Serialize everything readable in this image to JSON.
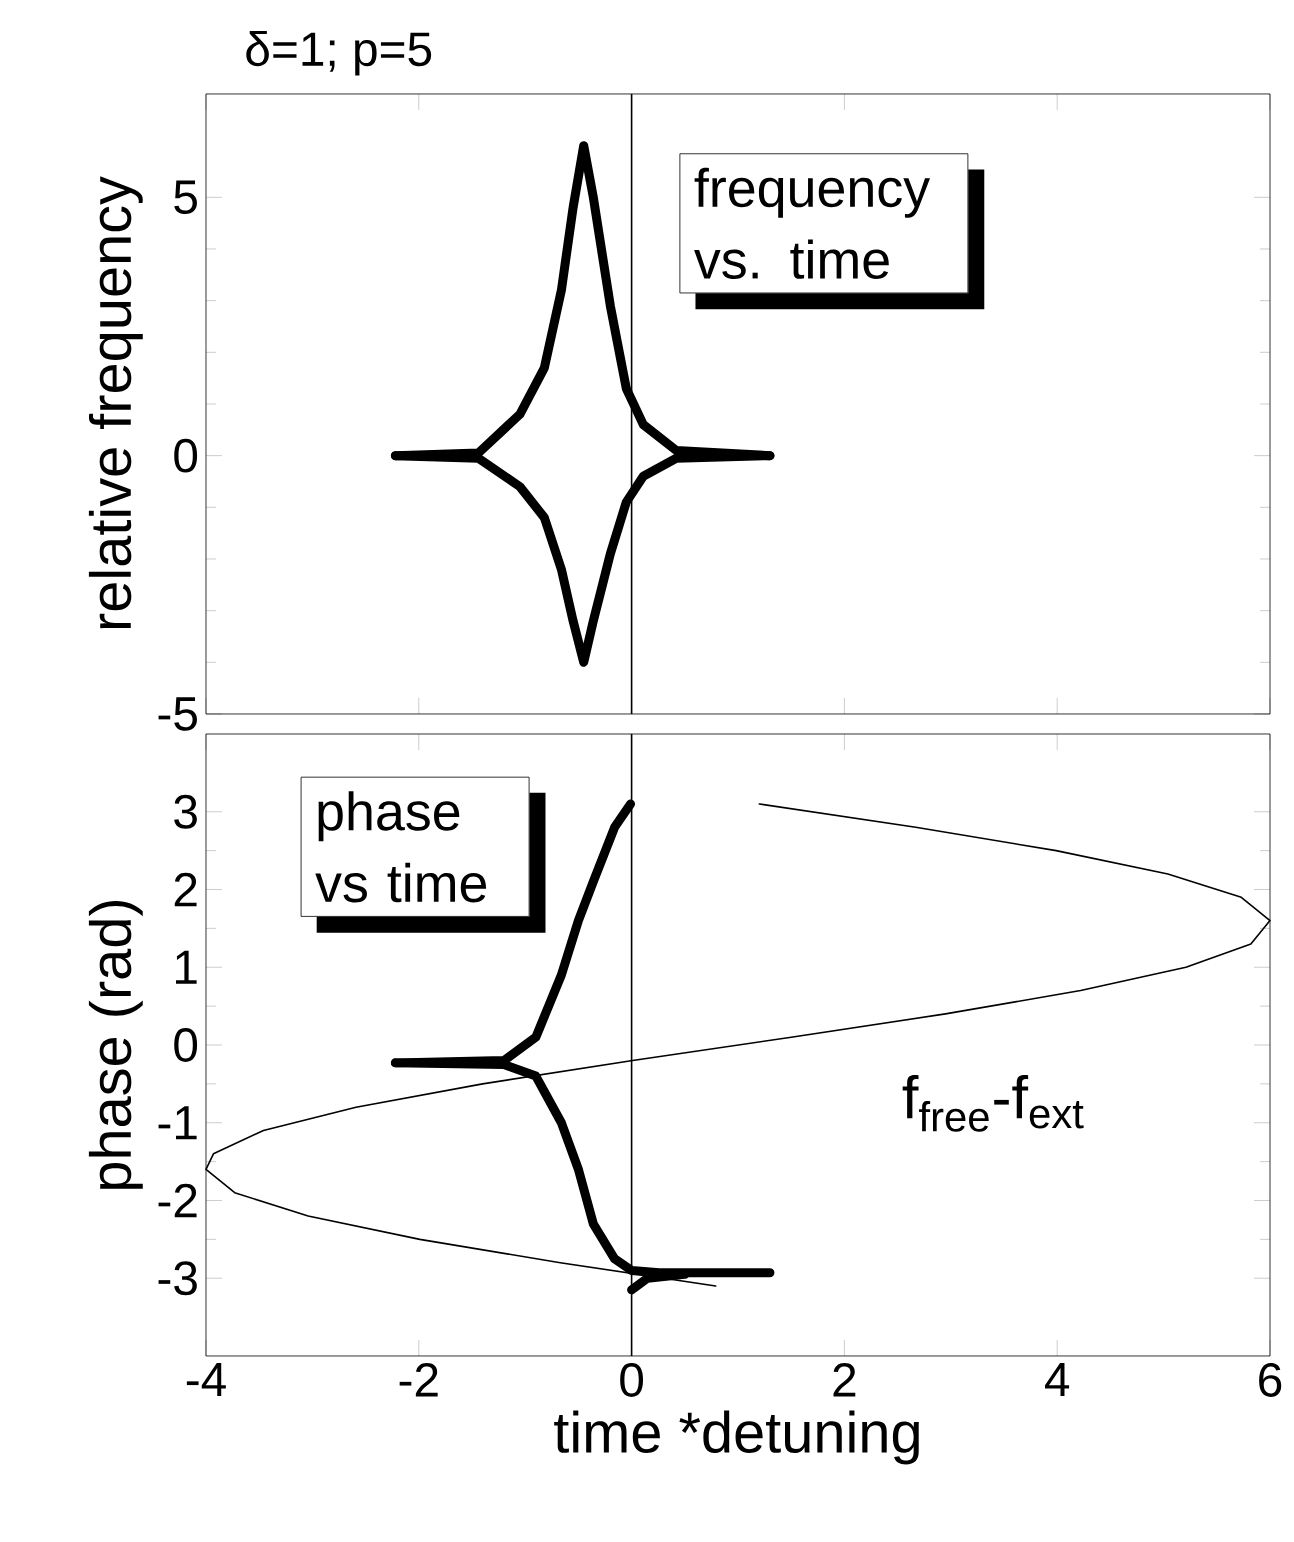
{
  "chart_data": [
    {
      "type": "line",
      "title": "δ=1; p=5",
      "ylabel": "relative frequency",
      "xlim": [
        -4,
        6
      ],
      "xticks": [
        -4,
        -2,
        0,
        2,
        4,
        6
      ],
      "ylim": [
        -5,
        7
      ],
      "yticks": [
        -5,
        0,
        5
      ],
      "tick_labels": "y",
      "marker": "none",
      "ref_lines": [
        {
          "axis": "x",
          "value": 0
        }
      ],
      "annotations": [
        "frequency vs. time"
      ],
      "series": [
        {
          "color": "#000000",
          "x": [
            -2.22,
            -1.44,
            -1.05,
            -0.82,
            -0.66,
            -0.55,
            -0.45,
            -0.36,
            -0.2,
            -0.05,
            0.11,
            0.42,
            1.3
          ],
          "values": [
            0,
            0.05,
            0.8,
            1.7,
            3.2,
            4.8,
            6.0,
            5.0,
            2.9,
            1.3,
            0.6,
            0.1,
            0
          ]
        },
        {
          "color": "#000000",
          "x": [
            -2.22,
            -1.44,
            -1.05,
            -0.82,
            -0.66,
            -0.55,
            -0.45,
            -0.36,
            -0.2,
            -0.05,
            0.11,
            0.42,
            1.3
          ],
          "values": [
            0,
            -0.05,
            -0.6,
            -1.2,
            -2.2,
            -3.2,
            -4.0,
            -3.2,
            -1.9,
            -0.9,
            -0.4,
            -0.05,
            0
          ]
        }
      ]
    },
    {
      "type": "line",
      "xlabel": "time *detuning",
      "ylabel": "phase (rad)",
      "xlim": [
        -4,
        6
      ],
      "xticks": [
        -4,
        -2,
        0,
        2,
        4,
        6
      ],
      "ylim": [
        -4,
        4
      ],
      "yticks": [
        -3,
        -2,
        -1,
        0,
        1,
        2,
        3
      ],
      "marker": "none",
      "ref_lines": [
        {
          "axis": "x",
          "value": 0
        }
      ],
      "annotations": [
        "phase vs time"
      ],
      "series": [
        {
          "color": "#000000",
          "x": [
            -2.22,
            -1.2,
            -0.9,
            -0.66,
            -0.5,
            -0.36,
            -0.16,
            -0.01
          ],
          "values": [
            -0.23,
            -0.2,
            0.1,
            0.9,
            1.6,
            2.1,
            2.8,
            3.1
          ]
        },
        {
          "color": "#000000",
          "x": [
            -2.22,
            -1.2,
            -0.9,
            -0.66,
            -0.5,
            -0.36,
            -0.16,
            0.0,
            0.26,
            1.3
          ],
          "values": [
            -0.23,
            -0.25,
            -0.4,
            -1.0,
            -1.6,
            -2.3,
            -2.75,
            -2.9,
            -2.93,
            -2.93
          ]
        },
        {
          "color": "#000000",
          "x": [
            0.0,
            0.15,
            0.5
          ],
          "values": [
            -3.15,
            -3.0,
            -2.95
          ]
        },
        {
          "name": "f$_{free}$-f$_{ext}$",
          "color": "#000000",
          "x": [
            1.2,
            2.67,
            3.99,
            5.04,
            5.73,
            6.0,
            5.82,
            5.21,
            4.22,
            2.95,
            1.5,
            0.01,
            -1.4,
            -2.59,
            -3.46,
            -3.93,
            -4.0,
            -3.73,
            -3.04,
            -1.99,
            -0.67,
            0.79
          ],
          "values": [
            3.1,
            2.8,
            2.5,
            2.2,
            1.9,
            1.6,
            1.3,
            1.0,
            0.7,
            0.4,
            0.1,
            -0.2,
            -0.5,
            -0.8,
            -1.1,
            -1.4,
            -1.6,
            -1.9,
            -2.2,
            -2.5,
            -2.8,
            -3.1
          ]
        }
      ]
    }
  ]
}
